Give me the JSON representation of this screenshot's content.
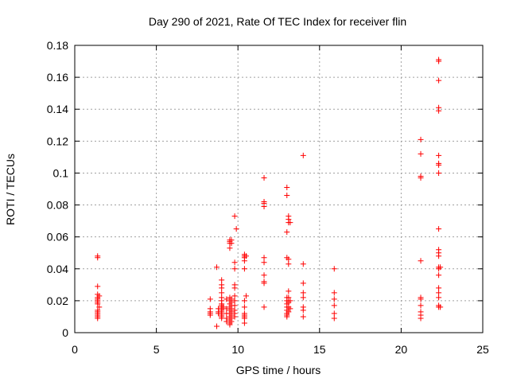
{
  "chart_data": {
    "type": "scatter",
    "title": "Day 290 of 2021, Rate Of TEC Index for receiver flin",
    "xlabel": "GPS time / hours",
    "ylabel": "ROTI / TECUs",
    "xlim": [
      0,
      25
    ],
    "ylim": [
      0,
      0.18
    ],
    "grid": true,
    "marker": "plus",
    "color": "#ff0000",
    "x_ticks": [
      "0",
      "5",
      "10",
      "15",
      "20",
      "25"
    ],
    "y_ticks": [
      "0",
      "0.02",
      "0.04",
      "0.06",
      "0.08",
      "0.1",
      "0.12",
      "0.14",
      "0.16",
      "0.18"
    ],
    "series": [
      {
        "points": [
          [
            1.4,
            0.048
          ],
          [
            1.4,
            0.047
          ],
          [
            1.4,
            0.029
          ],
          [
            1.4,
            0.024
          ],
          [
            1.4,
            0.022
          ],
          [
            1.4,
            0.021
          ],
          [
            1.4,
            0.02
          ],
          [
            1.4,
            0.019
          ],
          [
            1.4,
            0.018
          ],
          [
            1.4,
            0.014
          ],
          [
            1.4,
            0.013
          ],
          [
            1.4,
            0.012
          ],
          [
            1.4,
            0.011
          ],
          [
            1.4,
            0.01
          ],
          [
            1.4,
            0.009
          ],
          [
            1.5,
            0.023
          ],
          [
            1.5,
            0.016
          ],
          [
            8.3,
            0.021
          ],
          [
            8.3,
            0.015
          ],
          [
            8.3,
            0.013
          ],
          [
            8.3,
            0.012
          ],
          [
            8.3,
            0.011
          ],
          [
            8.7,
            0.041
          ],
          [
            8.7,
            0.004
          ],
          [
            8.8,
            0.015
          ],
          [
            8.8,
            0.013
          ],
          [
            8.8,
            0.012
          ],
          [
            9.0,
            0.033
          ],
          [
            9.0,
            0.03
          ],
          [
            9.0,
            0.028
          ],
          [
            9.0,
            0.025
          ],
          [
            9.0,
            0.022
          ],
          [
            9.0,
            0.02
          ],
          [
            9.0,
            0.018
          ],
          [
            9.0,
            0.017
          ],
          [
            9.0,
            0.016
          ],
          [
            9.0,
            0.015
          ],
          [
            9.0,
            0.014
          ],
          [
            9.0,
            0.013
          ],
          [
            9.0,
            0.012
          ],
          [
            9.0,
            0.011
          ],
          [
            9.0,
            0.01
          ],
          [
            9.0,
            0.009
          ],
          [
            9.1,
            0.016
          ],
          [
            9.3,
            0.021
          ],
          [
            9.3,
            0.015
          ],
          [
            9.3,
            0.012
          ],
          [
            9.3,
            0.009
          ],
          [
            9.3,
            0.007
          ],
          [
            9.5,
            0.058
          ],
          [
            9.5,
            0.057
          ],
          [
            9.5,
            0.056
          ],
          [
            9.5,
            0.053
          ],
          [
            9.5,
            0.022
          ],
          [
            9.5,
            0.02
          ],
          [
            9.5,
            0.018
          ],
          [
            9.5,
            0.016
          ],
          [
            9.5,
            0.014
          ],
          [
            9.5,
            0.012
          ],
          [
            9.5,
            0.01
          ],
          [
            9.5,
            0.008
          ],
          [
            9.5,
            0.006
          ],
          [
            9.5,
            0.005
          ],
          [
            9.6,
            0.058
          ],
          [
            9.6,
            0.056
          ],
          [
            9.6,
            0.021
          ],
          [
            9.6,
            0.019
          ],
          [
            9.6,
            0.017
          ],
          [
            9.6,
            0.015
          ],
          [
            9.6,
            0.013
          ],
          [
            9.6,
            0.011
          ],
          [
            9.6,
            0.009
          ],
          [
            9.6,
            0.007
          ],
          [
            9.8,
            0.073
          ],
          [
            9.8,
            0.044
          ],
          [
            9.8,
            0.04
          ],
          [
            9.8,
            0.03
          ],
          [
            9.8,
            0.028
          ],
          [
            9.8,
            0.023
          ],
          [
            9.8,
            0.02
          ],
          [
            9.8,
            0.017
          ],
          [
            9.8,
            0.014
          ],
          [
            9.8,
            0.012
          ],
          [
            9.8,
            0.01
          ],
          [
            9.9,
            0.065
          ],
          [
            10.4,
            0.049
          ],
          [
            10.4,
            0.048
          ],
          [
            10.4,
            0.047
          ],
          [
            10.4,
            0.045
          ],
          [
            10.4,
            0.04
          ],
          [
            10.4,
            0.02
          ],
          [
            10.4,
            0.016
          ],
          [
            10.4,
            0.012
          ],
          [
            10.4,
            0.011
          ],
          [
            10.4,
            0.01
          ],
          [
            10.4,
            0.009
          ],
          [
            10.4,
            0.006
          ],
          [
            10.5,
            0.048
          ],
          [
            10.5,
            0.023
          ],
          [
            11.6,
            0.097
          ],
          [
            11.6,
            0.082
          ],
          [
            11.6,
            0.081
          ],
          [
            11.6,
            0.079
          ],
          [
            11.6,
            0.047
          ],
          [
            11.6,
            0.044
          ],
          [
            11.6,
            0.036
          ],
          [
            11.6,
            0.032
          ],
          [
            11.6,
            0.031
          ],
          [
            11.6,
            0.016
          ],
          [
            13.0,
            0.091
          ],
          [
            13.0,
            0.086
          ],
          [
            13.0,
            0.063
          ],
          [
            13.0,
            0.047
          ],
          [
            13.0,
            0.022
          ],
          [
            13.0,
            0.02
          ],
          [
            13.0,
            0.018
          ],
          [
            13.0,
            0.016
          ],
          [
            13.0,
            0.014
          ],
          [
            13.0,
            0.012
          ],
          [
            13.0,
            0.011
          ],
          [
            13.0,
            0.01
          ],
          [
            13.1,
            0.073
          ],
          [
            13.1,
            0.071
          ],
          [
            13.1,
            0.069
          ],
          [
            13.1,
            0.046
          ],
          [
            13.1,
            0.043
          ],
          [
            13.1,
            0.026
          ],
          [
            13.1,
            0.022
          ],
          [
            13.1,
            0.019
          ],
          [
            13.1,
            0.016
          ],
          [
            13.1,
            0.013
          ],
          [
            13.2,
            0.069
          ],
          [
            13.2,
            0.02
          ],
          [
            13.2,
            0.015
          ],
          [
            14.0,
            0.111
          ],
          [
            14.0,
            0.043
          ],
          [
            14.0,
            0.031
          ],
          [
            14.0,
            0.025
          ],
          [
            14.0,
            0.022
          ],
          [
            14.0,
            0.016
          ],
          [
            14.0,
            0.014
          ],
          [
            14.0,
            0.01
          ],
          [
            15.9,
            0.04
          ],
          [
            15.9,
            0.025
          ],
          [
            15.9,
            0.021
          ],
          [
            15.9,
            0.017
          ],
          [
            15.9,
            0.012
          ],
          [
            15.9,
            0.009
          ],
          [
            21.2,
            0.121
          ],
          [
            21.2,
            0.112
          ],
          [
            21.2,
            0.098
          ],
          [
            21.2,
            0.097
          ],
          [
            21.2,
            0.045
          ],
          [
            21.2,
            0.022
          ],
          [
            21.2,
            0.021
          ],
          [
            21.2,
            0.017
          ],
          [
            21.2,
            0.013
          ],
          [
            21.2,
            0.011
          ],
          [
            21.2,
            0.009
          ],
          [
            22.3,
            0.171
          ],
          [
            22.3,
            0.17
          ],
          [
            22.3,
            0.158
          ],
          [
            22.3,
            0.141
          ],
          [
            22.3,
            0.139
          ],
          [
            22.3,
            0.111
          ],
          [
            22.3,
            0.106
          ],
          [
            22.3,
            0.105
          ],
          [
            22.3,
            0.1
          ],
          [
            22.3,
            0.065
          ],
          [
            22.3,
            0.052
          ],
          [
            22.3,
            0.05
          ],
          [
            22.3,
            0.048
          ],
          [
            22.3,
            0.041
          ],
          [
            22.3,
            0.04
          ],
          [
            22.3,
            0.036
          ],
          [
            22.3,
            0.028
          ],
          [
            22.3,
            0.025
          ],
          [
            22.3,
            0.022
          ],
          [
            22.3,
            0.017
          ],
          [
            22.3,
            0.016
          ],
          [
            22.4,
            0.041
          ],
          [
            22.4,
            0.016
          ]
        ]
      }
    ]
  }
}
